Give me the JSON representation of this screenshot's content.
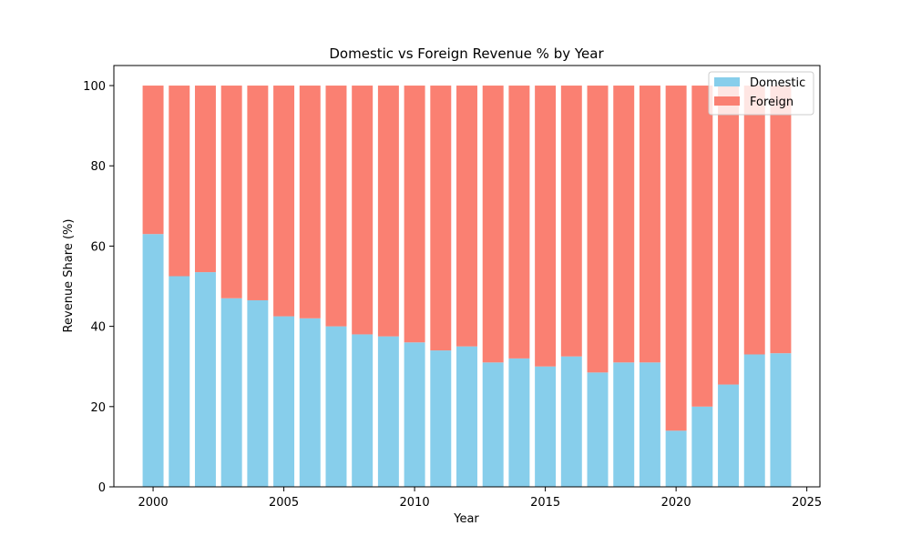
{
  "chart_data": {
    "type": "bar",
    "stacked": true,
    "title": "Domestic vs Foreign Revenue % by Year",
    "xlabel": "Year",
    "ylabel": "Revenue Share (%)",
    "xlim": [
      1998.5,
      2025.5
    ],
    "ylim": [
      0,
      105
    ],
    "xticks": [
      2000,
      2005,
      2010,
      2015,
      2020,
      2025
    ],
    "yticks": [
      0,
      20,
      40,
      60,
      80,
      100
    ],
    "grid": false,
    "legend_position": "top-right",
    "x": [
      2000,
      2001,
      2002,
      2003,
      2004,
      2005,
      2006,
      2007,
      2008,
      2009,
      2010,
      2011,
      2012,
      2013,
      2014,
      2015,
      2016,
      2017,
      2018,
      2019,
      2020,
      2021,
      2022,
      2023,
      2024
    ],
    "series": [
      {
        "name": "Domestic",
        "color": "#87ceeb",
        "values": [
          63.0,
          52.5,
          53.5,
          47.0,
          46.5,
          42.5,
          42.0,
          40.0,
          38.0,
          37.5,
          36.0,
          34.0,
          35.0,
          31.0,
          32.0,
          30.0,
          32.5,
          28.5,
          31.0,
          31.0,
          14.0,
          20.0,
          25.5,
          33.0,
          33.3
        ]
      },
      {
        "name": "Foreign",
        "color": "#fa8072",
        "values": [
          37.0,
          47.5,
          46.5,
          53.0,
          53.5,
          57.5,
          58.0,
          60.0,
          62.0,
          62.5,
          64.0,
          66.0,
          65.0,
          69.0,
          68.0,
          70.0,
          67.5,
          71.5,
          69.0,
          69.0,
          86.0,
          80.0,
          74.5,
          67.0,
          66.7
        ]
      }
    ]
  }
}
